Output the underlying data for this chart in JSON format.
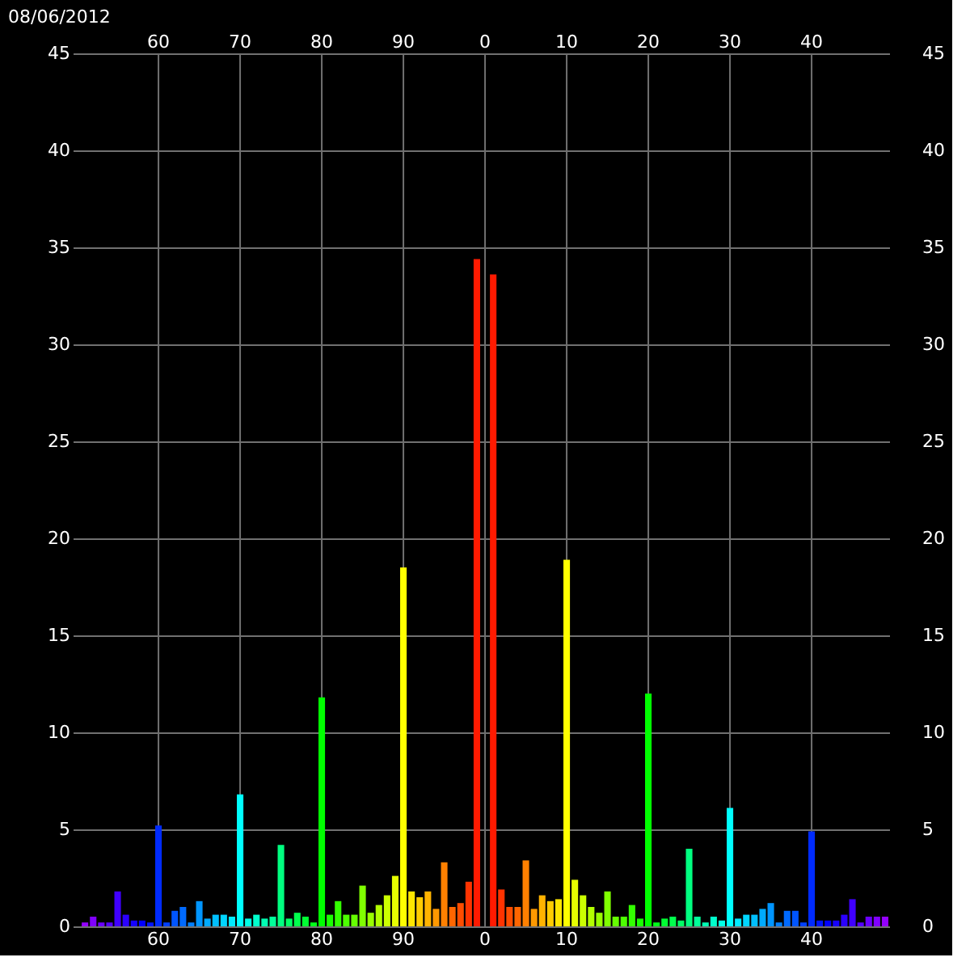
{
  "chart_data": {
    "type": "bar",
    "title": "08/06/2012",
    "categories": [
      null,
      null,
      null,
      null,
      null,
      null,
      null,
      null,
      null,
      null,
      "60",
      null,
      null,
      null,
      null,
      null,
      null,
      null,
      null,
      null,
      "70",
      null,
      null,
      null,
      null,
      null,
      null,
      null,
      null,
      null,
      "80",
      null,
      null,
      null,
      null,
      null,
      null,
      null,
      null,
      null,
      "90",
      null,
      null,
      null,
      null,
      null,
      null,
      null,
      null,
      null,
      "0",
      null,
      null,
      null,
      null,
      null,
      null,
      null,
      null,
      null,
      "10",
      null,
      null,
      null,
      null,
      null,
      null,
      null,
      null,
      null,
      "20",
      null,
      null,
      null,
      null,
      null,
      null,
      null,
      null,
      null,
      "30",
      null,
      null,
      null,
      null,
      null,
      null,
      null,
      null,
      null,
      "40",
      null,
      null,
      null,
      null,
      null,
      null,
      null,
      null,
      null
    ],
    "values": [
      0,
      0.2,
      0.5,
      0.2,
      0.2,
      1.8,
      0.6,
      0.3,
      0.3,
      0.2,
      5.2,
      0.2,
      0.8,
      1.0,
      0.2,
      1.3,
      0.4,
      0.6,
      0.6,
      0.5,
      6.8,
      0.4,
      0.6,
      0.4,
      0.5,
      4.2,
      0.4,
      0.7,
      0.5,
      0.2,
      11.8,
      0.6,
      1.3,
      0.6,
      0.6,
      2.1,
      0.7,
      1.1,
      1.6,
      2.6,
      18.5,
      1.8,
      1.5,
      1.8,
      0.9,
      3.3,
      1.0,
      1.2,
      2.3,
      34.4,
      0,
      33.6,
      1.9,
      1.0,
      1.0,
      3.4,
      0.9,
      1.6,
      1.3,
      1.4,
      18.9,
      2.4,
      1.6,
      1.0,
      0.7,
      1.8,
      0.5,
      0.5,
      1.1,
      0.4,
      12.0,
      0.2,
      0.4,
      0.5,
      0.3,
      4.0,
      0.5,
      0.2,
      0.5,
      0.3,
      6.1,
      0.4,
      0.6,
      0.6,
      0.9,
      1.2,
      0.2,
      0.8,
      0.8,
      0.2,
      4.9,
      0.3,
      0.3,
      0.3,
      0.6,
      1.4,
      0.2,
      0.5,
      0.5,
      0.5
    ],
    "colors": [
      "#aa00ff",
      "#9500ff",
      "#8000ff",
      "#6a00ff",
      "#5500ff",
      "#4000ff",
      "#2b00ff",
      "#1500ff",
      "#0000ff",
      "#0015ff",
      "#002bff",
      "#0040ff",
      "#0055ff",
      "#006aff",
      "#0080ff",
      "#0095ff",
      "#00aaff",
      "#00bfff",
      "#00d5ff",
      "#00eaff",
      "#00ffff",
      "#00ffe6",
      "#00ffcc",
      "#00ffb3",
      "#00ff99",
      "#00ff80",
      "#00ff66",
      "#00ff4d",
      "#00ff33",
      "#00ff1a",
      "#00ff00",
      "#1aff00",
      "#33ff00",
      "#4dff00",
      "#66ff00",
      "#80ff00",
      "#99ff00",
      "#b3ff00",
      "#ccff00",
      "#e6ff00",
      "#ffff00",
      "#ffe600",
      "#ffcc00",
      "#ffb300",
      "#ff9900",
      "#ff8000",
      "#ff6600",
      "#ff4d00",
      "#ff3300",
      "#ff1a00",
      "#ff0000",
      "#ff1a00",
      "#ff3300",
      "#ff4d00",
      "#ff6600",
      "#ff8000",
      "#ff9900",
      "#ffb300",
      "#ffcc00",
      "#ffe600",
      "#ffff00",
      "#e6ff00",
      "#ccff00",
      "#b3ff00",
      "#99ff00",
      "#80ff00",
      "#66ff00",
      "#4dff00",
      "#33ff00",
      "#1aff00",
      "#00ff00",
      "#00ff1a",
      "#00ff33",
      "#00ff4d",
      "#00ff66",
      "#00ff80",
      "#00ff99",
      "#00ffb3",
      "#00ffcc",
      "#00ffe6",
      "#00ffff",
      "#00eaff",
      "#00d5ff",
      "#00bfff",
      "#00aaff",
      "#0095ff",
      "#0080ff",
      "#006aff",
      "#0055ff",
      "#0040ff",
      "#002bff",
      "#0015ff",
      "#0000ff",
      "#1500ff",
      "#2b00ff",
      "#4000ff",
      "#5500ff",
      "#6a00ff",
      "#8000ff",
      "#9500ff"
    ],
    "ylim": [
      0,
      45
    ],
    "yticks": [
      0,
      5,
      10,
      15,
      20,
      25,
      30,
      35,
      40,
      45
    ],
    "y2lim": [
      0,
      45
    ],
    "y2ticks": [
      0,
      5,
      10,
      15,
      20,
      25,
      30,
      35,
      40,
      45
    ],
    "grid": true
  }
}
